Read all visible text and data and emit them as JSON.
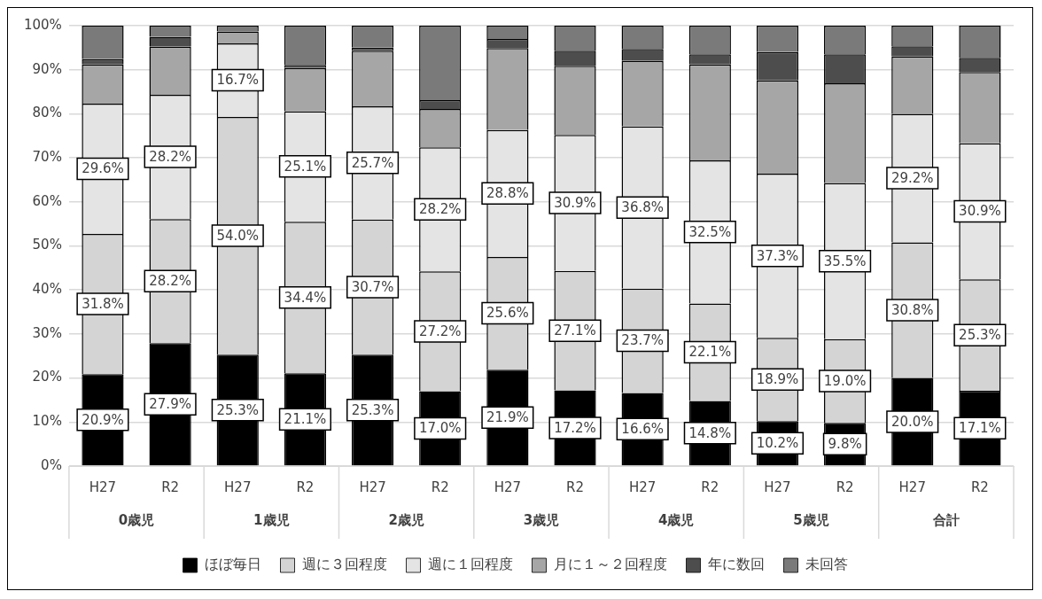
{
  "chart_data": {
    "type": "bar",
    "stacked": true,
    "categories": [
      "H27",
      "R2",
      "H27",
      "R2",
      "H27",
      "R2",
      "H27",
      "R2",
      "H27",
      "R2",
      "H27",
      "R2",
      "H27",
      "R2"
    ],
    "annotations": [
      "0歳児",
      "1歳児",
      "2歳児",
      "3歳児",
      "4歳児",
      "5歳児",
      "合計"
    ],
    "series": [
      {
        "name": "ほぼ毎日",
        "color": "#000000",
        "values": [
          20.9,
          27.9,
          25.3,
          21.1,
          25.3,
          17.0,
          21.9,
          17.2,
          16.6,
          14.8,
          10.2,
          9.8,
          20.0,
          17.1
        ],
        "value_labels": [
          "20.9%",
          "27.9%",
          "25.3%",
          "21.1%",
          "25.3%",
          "17.0%",
          "21.9%",
          "17.2%",
          "16.6%",
          "14.8%",
          "10.2%",
          "9.8%",
          "20.0%",
          "17.1%"
        ]
      },
      {
        "name": "週に３回程度",
        "color": "#d4d4d4",
        "values": [
          31.8,
          28.2,
          54.0,
          34.4,
          30.7,
          27.2,
          25.6,
          27.1,
          23.7,
          22.1,
          18.9,
          19.0,
          30.8,
          25.3
        ],
        "value_labels": [
          "31.8%",
          "28.2%",
          "54.0%",
          "34.4%",
          "30.7%",
          "27.2%",
          "25.6%",
          "27.1%",
          "23.7%",
          "22.1%",
          "18.9%",
          "19.0%",
          "30.8%",
          "25.3%"
        ]
      },
      {
        "name": "週に１回程度",
        "color": "#e4e4e4",
        "values": [
          29.6,
          28.2,
          16.7,
          25.1,
          25.7,
          28.2,
          28.8,
          30.9,
          36.8,
          32.5,
          37.3,
          35.5,
          29.2,
          30.9
        ],
        "value_labels": [
          "29.6%",
          "28.2%",
          "16.7%",
          "25.1%",
          "25.7%",
          "28.2%",
          "28.8%",
          "30.9%",
          "36.8%",
          "32.5%",
          "37.3%",
          "35.5%",
          "29.2%",
          "30.9%"
        ]
      },
      {
        "name": "月に１～２回程度",
        "color": "#a6a6a6",
        "values": [
          8.9,
          10.9,
          2.7,
          9.8,
          12.6,
          8.7,
          18.6,
          15.7,
          14.9,
          21.8,
          21.2,
          22.6,
          13.0,
          16.2
        ]
      },
      {
        "name": "年に数回",
        "color": "#4d4d4d",
        "values": [
          1.2,
          2.3,
          0.1,
          0.7,
          0.7,
          2.0,
          2.1,
          3.4,
          2.7,
          2.3,
          6.4,
          6.6,
          2.3,
          3.2
        ]
      },
      {
        "name": "未回答",
        "color": "#7a7a7a",
        "values": [
          7.6,
          2.5,
          1.2,
          8.9,
          5.0,
          16.9,
          3.0,
          5.7,
          5.3,
          6.5,
          6.0,
          6.5,
          4.7,
          7.3
        ]
      }
    ],
    "ylim": [
      0,
      100
    ],
    "yticks": [
      {
        "value": 0,
        "label": "0%"
      },
      {
        "value": 10,
        "label": "10%"
      },
      {
        "value": 20,
        "label": "20%"
      },
      {
        "value": 30,
        "label": "30%"
      },
      {
        "value": 40,
        "label": "40%"
      },
      {
        "value": 50,
        "label": "50%"
      },
      {
        "value": 60,
        "label": "60%"
      },
      {
        "value": 70,
        "label": "70%"
      },
      {
        "value": 80,
        "label": "80%"
      },
      {
        "value": 90,
        "label": "90%"
      },
      {
        "value": 100,
        "label": "100%"
      }
    ],
    "grid": "y",
    "legend": "bottom"
  }
}
